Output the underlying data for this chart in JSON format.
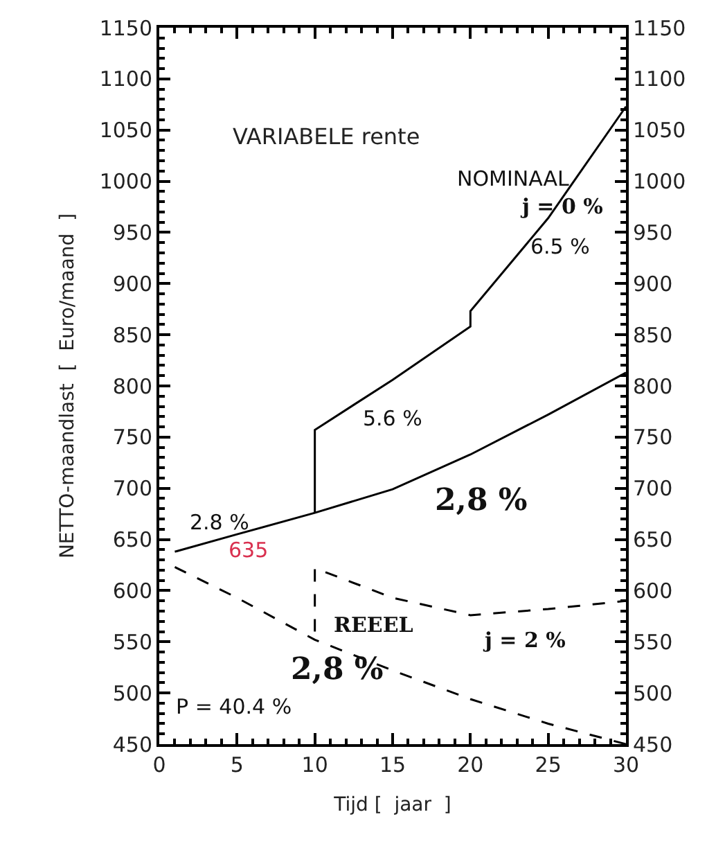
{
  "chart_data": {
    "type": "line",
    "title": "VARIABELE rente",
    "xlabel": "Tijd [  jaar  ]",
    "ylabel": "NETTO-maandlast  [  Euro/maand  ]",
    "xlim": [
      0,
      30
    ],
    "xticks": [
      0,
      5,
      10,
      15,
      20,
      25,
      30
    ],
    "ylim": [
      450,
      1150
    ],
    "yticks": [
      450,
      500,
      550,
      600,
      650,
      700,
      750,
      800,
      850,
      900,
      950,
      1000,
      1050,
      1100,
      1150
    ],
    "y2lim": [
      450,
      1150
    ],
    "y2ticks": [
      450,
      500,
      550,
      600,
      650,
      700,
      750,
      800,
      850,
      900,
      950,
      1000,
      1050,
      1100,
      1150
    ],
    "legend": false,
    "marker": "none",
    "series": [
      {
        "color": "#000000",
        "line_style": "solid",
        "x": [
          1,
          5,
          10,
          15,
          20,
          25,
          30
        ],
        "values": [
          638,
          655,
          676,
          699,
          733,
          772,
          813
        ]
      },
      {
        "color": "#000000",
        "line_style": "solid",
        "x": [
          10,
          10,
          15,
          20,
          20,
          25,
          30
        ],
        "values": [
          676,
          757,
          806,
          858,
          873,
          964,
          1073
        ]
      },
      {
        "color": "#000000",
        "line_style": "dashed",
        "x": [
          1,
          5,
          10,
          15,
          20,
          25,
          30
        ],
        "values": [
          623,
          593,
          552,
          522,
          494,
          470,
          450
        ]
      },
      {
        "color": "#000000",
        "line_style": "dashed",
        "x": [
          10,
          10,
          15,
          20,
          25,
          30
        ],
        "values": [
          560,
          622,
          593,
          576,
          582,
          590
        ]
      }
    ],
    "annotations": [
      "NOMINAAL",
      "j = 0 %",
      "6.5 %",
      "5.6 %",
      "2,8 %",
      "2.8 %",
      "REEEL",
      "j = 2 %",
      "2,8 %",
      "635",
      "P = 40.4 %"
    ]
  }
}
